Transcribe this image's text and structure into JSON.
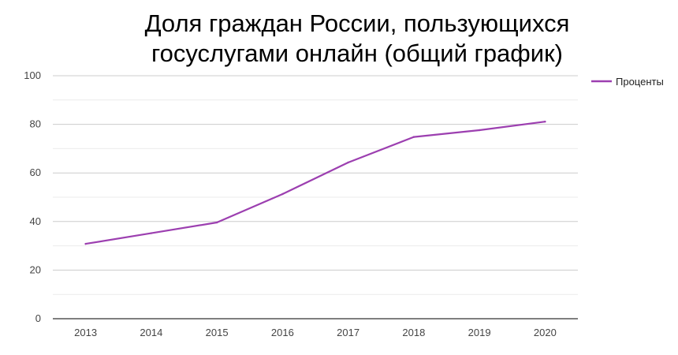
{
  "chart_data": {
    "type": "line",
    "title_lines": [
      "Доля граждан России, пользующихся",
      "госуслугами онлайн (общий график)"
    ],
    "x": [
      "2013",
      "2014",
      "2015",
      "2016",
      "2017",
      "2018",
      "2019",
      "2020"
    ],
    "series": [
      {
        "name": "Проценты",
        "color": "#9c3fb0",
        "values": [
          30.8,
          35.2,
          39.6,
          51.3,
          64.3,
          74.8,
          77.6,
          81.1
        ]
      }
    ],
    "y_ticks": [
      "0",
      "20",
      "40",
      "60",
      "80",
      "100"
    ],
    "ylim": [
      0,
      100
    ],
    "grid": true,
    "minor_grid": true,
    "legend_position": "right"
  }
}
